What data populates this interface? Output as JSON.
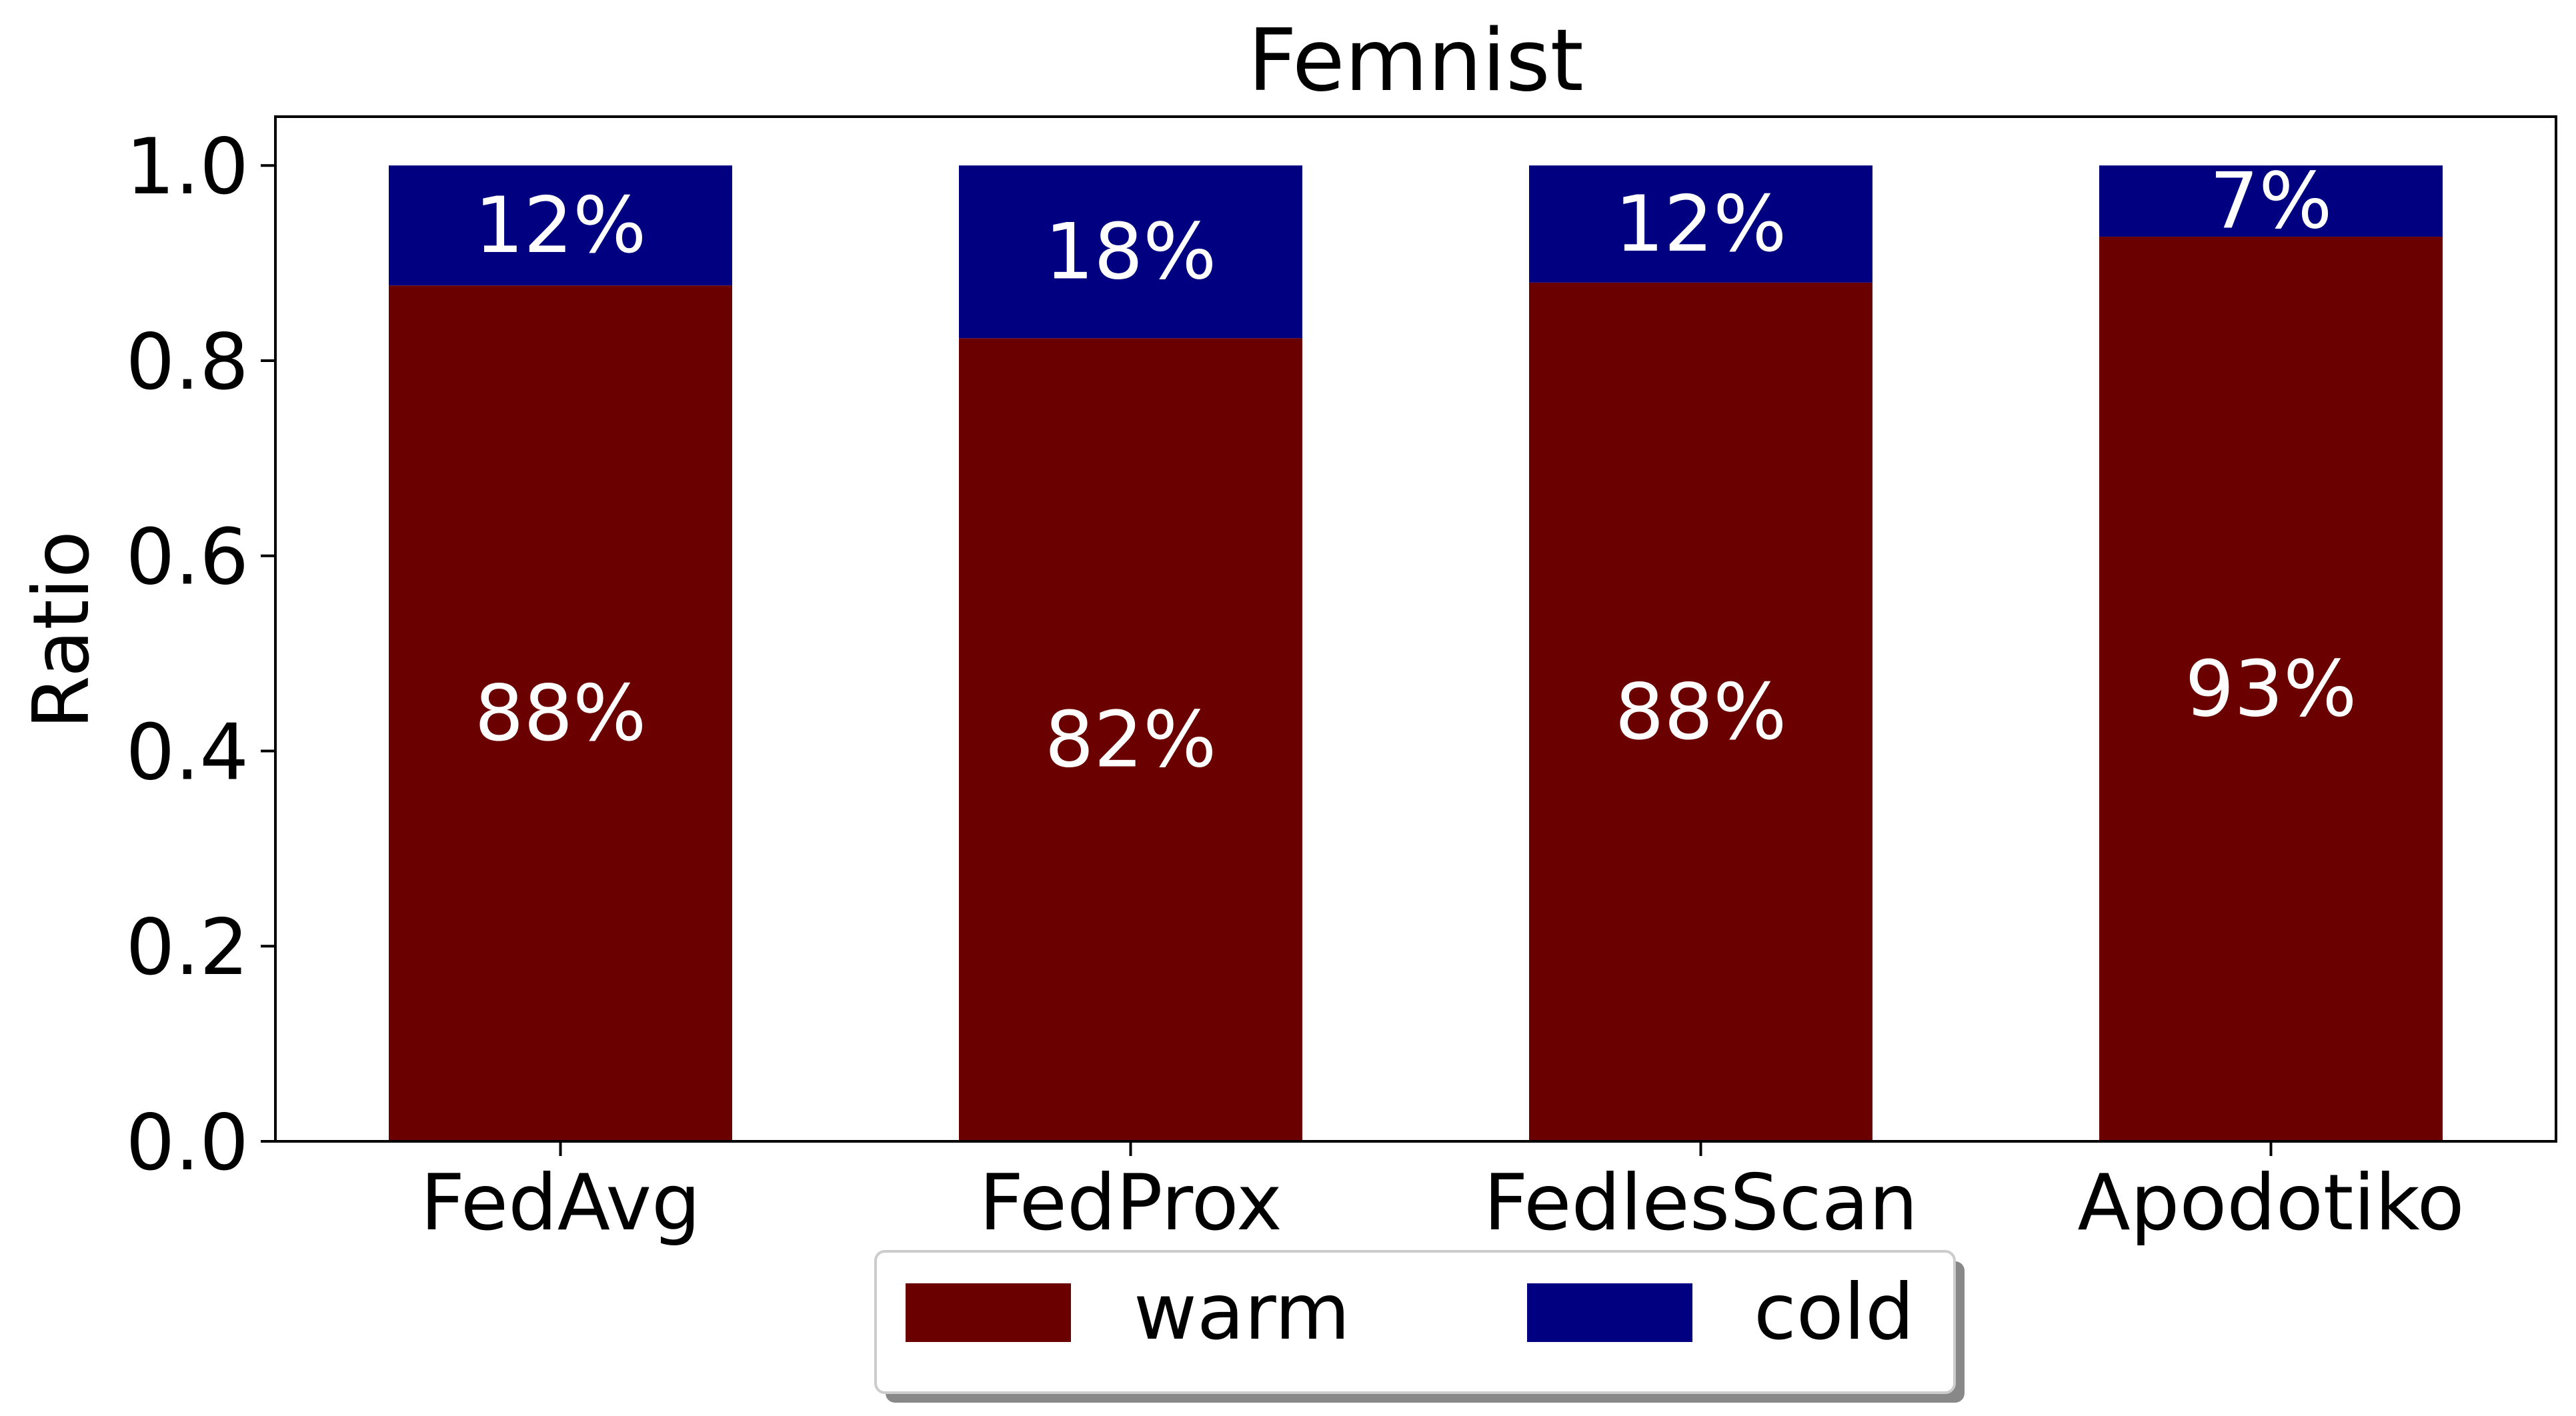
{
  "chart_data": {
    "type": "bar",
    "stacked": true,
    "title": "Femnist",
    "xlabel": "",
    "ylabel": "Ratio",
    "ylim": [
      0,
      1.05
    ],
    "yticks": [
      "0.0",
      "0.2",
      "0.4",
      "0.6",
      "0.8",
      "1.0"
    ],
    "categories": [
      "FedAvg",
      "FedProx",
      "FedlesScan",
      "Apodotiko"
    ],
    "series": [
      {
        "name": "warm",
        "color": "#6b0000",
        "values": [
          0.877,
          0.823,
          0.88,
          0.927
        ],
        "labels": [
          "88%",
          "82%",
          "88%",
          "93%"
        ]
      },
      {
        "name": "cold",
        "color": "#000080",
        "values": [
          0.123,
          0.177,
          0.12,
          0.073
        ],
        "labels": [
          "12%",
          "18%",
          "12%",
          "7%"
        ]
      }
    ],
    "legend": {
      "position": "bottom-center",
      "columns": 2
    },
    "grid": false
  }
}
